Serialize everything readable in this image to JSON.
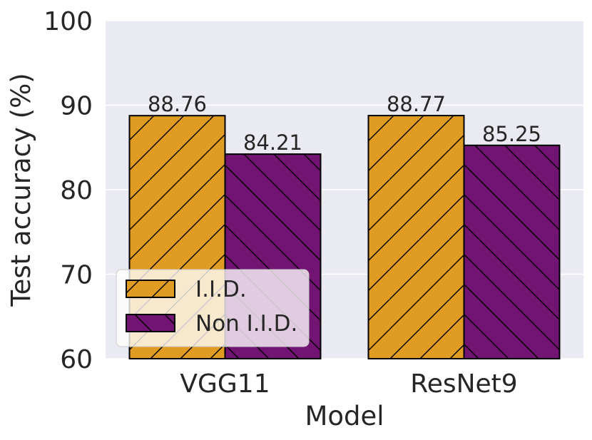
{
  "chart_data": {
    "type": "bar",
    "title": "",
    "xlabel": "Model",
    "ylabel": "Test accuracy (%)",
    "categories": [
      "VGG11",
      "ResNet9"
    ],
    "series": [
      {
        "name": "I.I.D.",
        "values": [
          88.76,
          88.77
        ],
        "color": "#e09b22",
        "hatch": "/"
      },
      {
        "name": "Non I.I.D.",
        "values": [
          84.21,
          85.25
        ],
        "color": "#711472",
        "hatch": "\\"
      }
    ],
    "value_labels": [
      "88.76",
      "88.77",
      "84.21",
      "85.25"
    ],
    "ylim": [
      60,
      100
    ],
    "yticks": [
      60,
      70,
      80,
      90,
      100
    ],
    "ytick_labels": [
      "60",
      "70",
      "80",
      "90",
      "100"
    ],
    "grid": true,
    "background": "#eaeaf2",
    "legend_position": "lower-left"
  }
}
